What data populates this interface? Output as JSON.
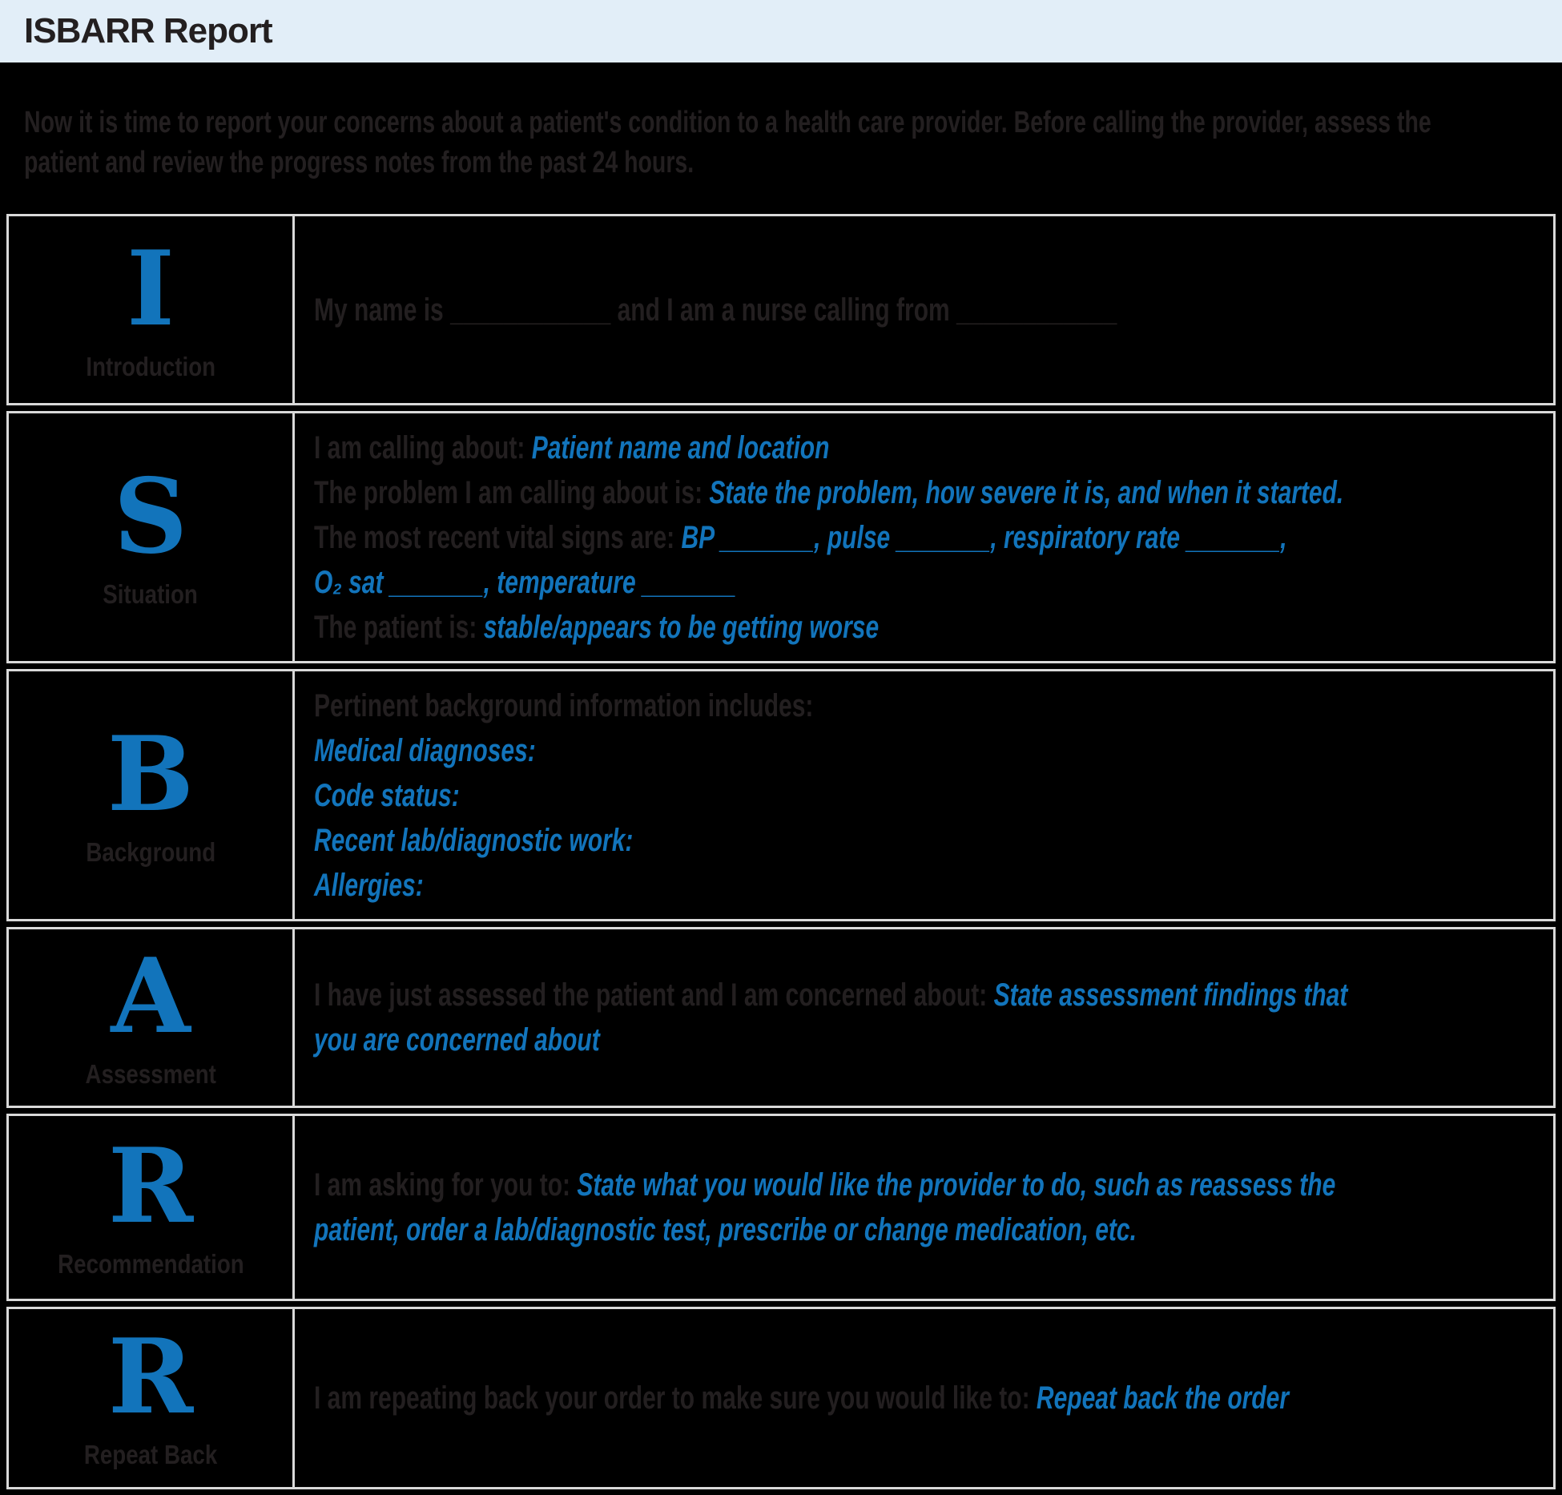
{
  "colors": {
    "page_bg": "#000000",
    "header_bg": "#e2eef8",
    "text_dark": "#231f20",
    "accent_blue": "#1274bb",
    "table_border": "#d9d9d9"
  },
  "header": {
    "title": "ISBARR Report"
  },
  "intro": "Now it is time to report your concerns about a patient's condition to a health care provider. Before calling the provider, assess the patient and review the progress notes from the past 24 hours.",
  "rows": [
    {
      "id": "introduction",
      "letter": "I",
      "label": "Introduction",
      "lines": [
        [
          {
            "c": "dark",
            "t": "My name is ____________ and I am a nurse calling from ____________"
          }
        ]
      ]
    },
    {
      "id": "situation",
      "letter": "S",
      "label": "Situation",
      "lines": [
        [
          {
            "c": "dark",
            "t": "I am calling about: "
          },
          {
            "c": "blue",
            "t": "Patient name and location"
          }
        ],
        [
          {
            "c": "dark",
            "t": "The problem I am calling about is: "
          },
          {
            "c": "blue",
            "t": "State the problem, how severe it is, and when it started."
          }
        ],
        [
          {
            "c": "dark",
            "t": "The most recent vital signs are: "
          },
          {
            "c": "blue",
            "t": "BP _______, pulse _______, respiratory rate _______,"
          }
        ],
        [
          {
            "c": "blue",
            "t": "O₂ sat _______, temperature _______"
          }
        ],
        [
          {
            "c": "dark",
            "t": "The patient is: "
          },
          {
            "c": "blue",
            "t": "stable/appears to be getting worse"
          }
        ]
      ]
    },
    {
      "id": "background",
      "letter": "B",
      "label": "Background",
      "lines": [
        [
          {
            "c": "dark",
            "t": "Pertinent background information includes:"
          }
        ],
        [
          {
            "c": "blue",
            "t": "Medical diagnoses:"
          }
        ],
        [
          {
            "c": "blue",
            "t": "Code status:"
          }
        ],
        [
          {
            "c": "blue",
            "t": "Recent lab/diagnostic work:"
          }
        ],
        [
          {
            "c": "blue",
            "t": "Allergies:"
          }
        ]
      ]
    },
    {
      "id": "assessment",
      "letter": "A",
      "label": "Assessment",
      "lines": [
        [
          {
            "c": "dark",
            "t": "I have just assessed the patient and I am concerned about: "
          },
          {
            "c": "blue",
            "t": "State assessment findings that"
          }
        ],
        [
          {
            "c": "blue",
            "t": "you are concerned about"
          }
        ]
      ]
    },
    {
      "id": "recommendation",
      "letter": "R",
      "label": "Recommendation",
      "lines": [
        [
          {
            "c": "dark",
            "t": "I am asking for you to: "
          },
          {
            "c": "blue",
            "t": "State what you would like the provider to do, such as reassess the"
          }
        ],
        [
          {
            "c": "blue",
            "t": "patient, order a lab/diagnostic test, prescribe or change medication, etc."
          }
        ]
      ]
    },
    {
      "id": "repeat-back",
      "letter": "R",
      "label": "Repeat Back",
      "lines": [
        [
          {
            "c": "dark",
            "t": "I am repeating back your order to make sure you would like to: "
          },
          {
            "c": "blue",
            "t": "Repeat back the order"
          }
        ]
      ]
    }
  ]
}
